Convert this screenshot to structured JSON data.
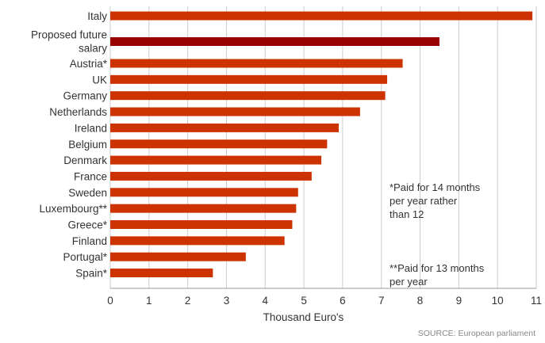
{
  "chart_data": {
    "type": "bar",
    "orientation": "horizontal",
    "categories": [
      "Italy",
      "Proposed future salary",
      "Austria*",
      "UK",
      "Germany",
      "Netherlands",
      "Ireland",
      "Belgium",
      "Denmark",
      "France",
      "Sweden",
      "Luxembourg**",
      "Greece*",
      "Finland",
      "Portugal*",
      "Spain*"
    ],
    "category_label_lines": [
      [
        "Italy"
      ],
      [
        "Proposed future",
        "salary"
      ],
      [
        "Austria*"
      ],
      [
        "UK"
      ],
      [
        "Germany"
      ],
      [
        "Netherlands"
      ],
      [
        "Ireland"
      ],
      [
        "Belgium"
      ],
      [
        "Denmark"
      ],
      [
        "France"
      ],
      [
        "Sweden"
      ],
      [
        "Luxembourg**"
      ],
      [
        "Greece*"
      ],
      [
        "Finland"
      ],
      [
        "Portugal*"
      ],
      [
        "Spain*"
      ]
    ],
    "values": [
      10.9,
      8.5,
      7.55,
      7.15,
      7.1,
      6.45,
      5.9,
      5.6,
      5.45,
      5.2,
      4.85,
      4.8,
      4.7,
      4.5,
      3.5,
      2.65
    ],
    "highlight_category": "Proposed future salary",
    "xlabel": "Thousand Euro's",
    "ylabel": "",
    "xlim": [
      0,
      11
    ],
    "xticks": [
      "0",
      "1",
      "2",
      "3",
      "4",
      "5",
      "6",
      "7",
      "8",
      "9",
      "10",
      "11"
    ],
    "grid": "vertical",
    "colors": {
      "bar": "#cc3300",
      "highlight": "#990000",
      "grid": "#cccccc",
      "axis": "#999999",
      "text": "#333333"
    }
  },
  "notes": {
    "note1": "*Paid for 14 months\n per year rather\n than 12",
    "note2": "**Paid for 13 months\n per year"
  },
  "source": "SOURCE: European parliament"
}
